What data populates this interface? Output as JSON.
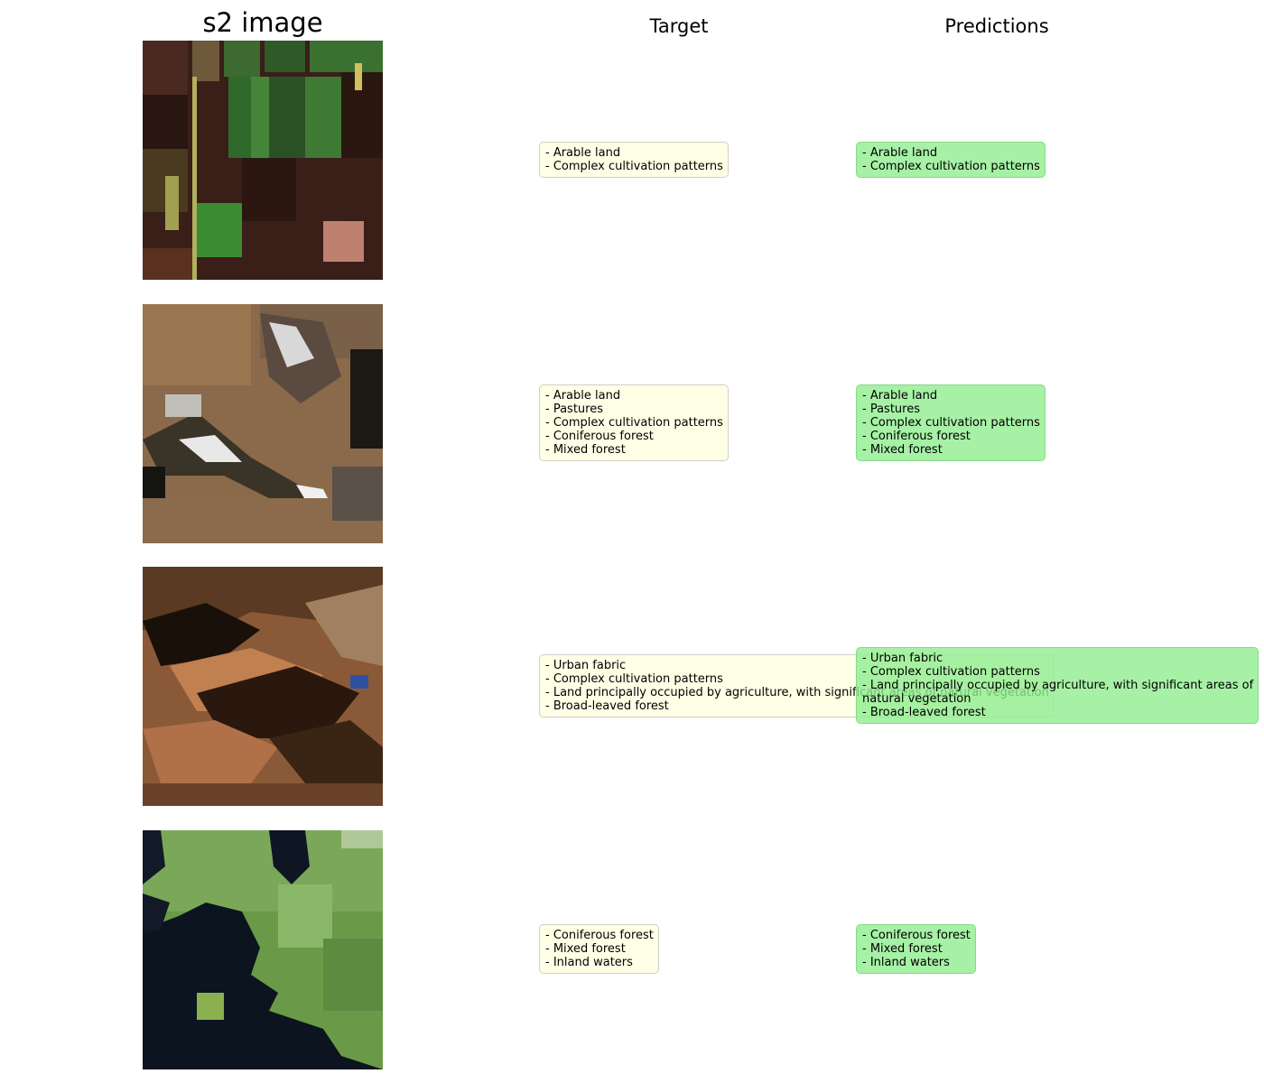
{
  "headers": {
    "image": "s2 image",
    "target": "Target",
    "predictions": "Predictions"
  },
  "rows": [
    {
      "image_description_icon": "satellite-tile-farmland",
      "target": [
        "- Arable land",
        "- Complex cultivation patterns"
      ],
      "predictions": [
        "- Arable land",
        "- Complex cultivation patterns"
      ]
    },
    {
      "image_description_icon": "satellite-tile-snowy-fields",
      "target": [
        "- Arable land",
        "- Pastures",
        "- Complex cultivation patterns",
        "- Coniferous forest",
        "- Mixed forest"
      ],
      "predictions": [
        "- Arable land",
        "- Pastures",
        "- Complex cultivation patterns",
        "- Coniferous forest",
        "- Mixed forest"
      ]
    },
    {
      "image_description_icon": "satellite-tile-hills",
      "target": [
        "- Urban fabric",
        "- Complex cultivation patterns",
        "- Land principally occupied by agriculture, with significant areas of natural vegetation",
        "- Broad-leaved forest"
      ],
      "predictions": [
        "- Urban fabric",
        "- Complex cultivation patterns",
        "- Land principally occupied by agriculture, with significant areas of",
        "natural vegetation",
        "- Broad-leaved forest"
      ]
    },
    {
      "image_description_icon": "satellite-tile-lake-forest",
      "target": [
        "- Coniferous forest",
        "- Mixed forest",
        "- Inland waters"
      ],
      "predictions": [
        "- Coniferous forest",
        "- Mixed forest",
        "- Inland waters"
      ]
    }
  ],
  "colors": {
    "target_box_bg": "#ffffe6",
    "prediction_box_bg": "#90ee90"
  }
}
